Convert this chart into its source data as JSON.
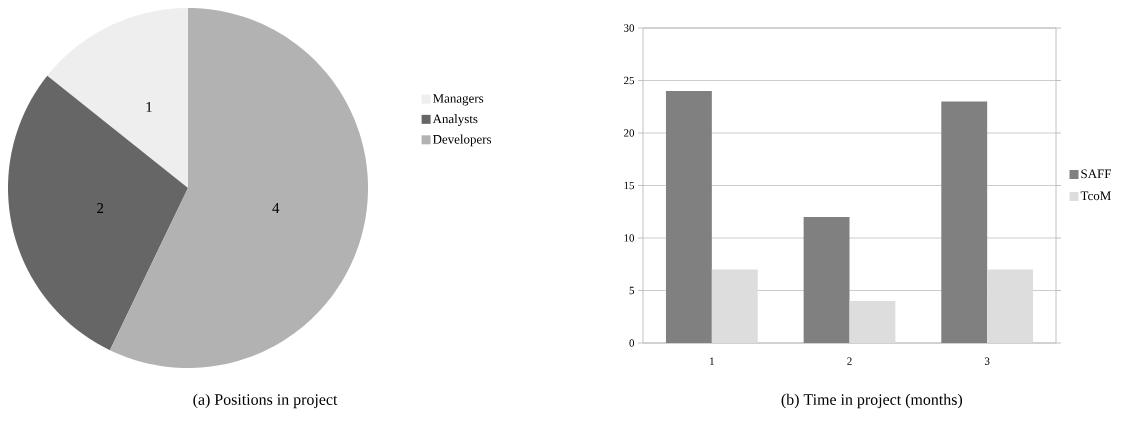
{
  "chart_data": [
    {
      "type": "pie",
      "title": "(a) Positions in project",
      "categories": [
        "Managers",
        "Analysts",
        "Developers"
      ],
      "values": [
        1,
        2,
        4
      ],
      "colors": [
        "#eeeeee",
        "#666666",
        "#b2b2b2"
      ],
      "data_labels": true,
      "legend": "right"
    },
    {
      "type": "bar",
      "title": "(b) Time in project (months)",
      "categories": [
        "1",
        "2",
        "3"
      ],
      "series": [
        {
          "name": "SAFF",
          "color": "#808080",
          "values": [
            24,
            12,
            23
          ]
        },
        {
          "name": "TcoM",
          "color": "#dddddd",
          "values": [
            7,
            4,
            7
          ]
        }
      ],
      "ylim": [
        0,
        30
      ],
      "yticks": [
        0,
        5,
        10,
        15,
        20,
        25,
        30
      ],
      "grid": "y",
      "legend": "right"
    }
  ]
}
